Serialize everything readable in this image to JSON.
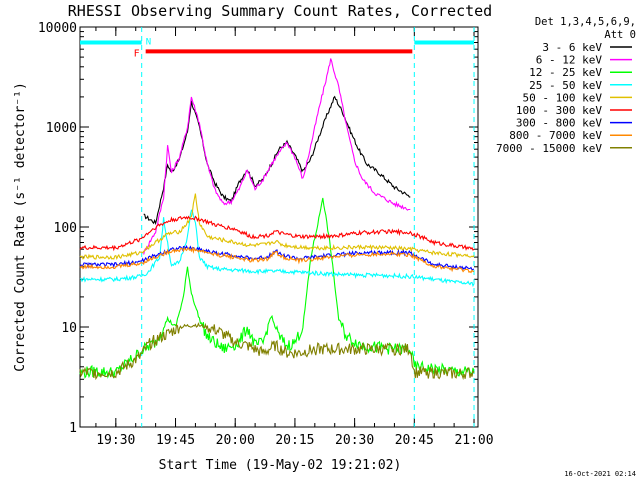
{
  "title": "RHESSI Observing Summary Count Rates, Corrected",
  "timestamp": "16-Oct-2021 02:14",
  "legend_header": [
    "Det 1,3,4,5,6,9,",
    "Att 0"
  ],
  "chart_data": {
    "type": "line",
    "title": "RHESSI Observing Summary Count Rates, Corrected",
    "xlabel": "Start Time (19-May-02 19:21:02)",
    "ylabel": "Corrected Count Rate (s⁻¹ detector⁻¹)",
    "x_ticks": [
      "19:30",
      "19:45",
      "20:00",
      "20:15",
      "20:30",
      "20:45",
      "21:00"
    ],
    "x_tick_minutes": [
      30,
      45,
      60,
      75,
      90,
      105,
      120
    ],
    "xlim_minutes_after_19h": [
      21,
      121
    ],
    "y_scale": "log",
    "ylim": [
      1,
      10000
    ],
    "y_ticks": [
      {
        "v": 1,
        "label": "1"
      },
      {
        "v": 10,
        "label": "10"
      },
      {
        "v": 100,
        "label": "100"
      },
      {
        "v": 1000,
        "label": "1000"
      },
      {
        "v": 10000,
        "label": "10000"
      }
    ],
    "grid": false,
    "legend_placement": "outside-right",
    "flags": [
      {
        "label": "F",
        "start_min": 37.5,
        "end_min": 104.5,
        "level": 5700,
        "color": "#ff0000"
      },
      {
        "label": "N",
        "segments": [
          [
            21,
            36.5
          ],
          [
            105,
            120
          ]
        ],
        "level": 7000,
        "color": "#00ffff"
      }
    ],
    "boundaries_min": [
      36.5,
      105,
      120
    ],
    "series": [
      {
        "name": "3 - 6 keV",
        "color": "#000000",
        "points": [
          [
            37,
            130
          ],
          [
            40,
            110
          ],
          [
            42,
            250
          ],
          [
            43,
            420
          ],
          [
            44,
            350
          ],
          [
            46,
            480
          ],
          [
            48,
            900
          ],
          [
            49,
            1800
          ],
          [
            51,
            1000
          ],
          [
            53,
            420
          ],
          [
            55,
            270
          ],
          [
            57,
            200
          ],
          [
            59,
            180
          ],
          [
            61,
            280
          ],
          [
            63,
            380
          ],
          [
            65,
            260
          ],
          [
            67,
            300
          ],
          [
            69,
            420
          ],
          [
            71,
            600
          ],
          [
            73,
            700
          ],
          [
            75,
            520
          ],
          [
            77,
            360
          ],
          [
            79,
            480
          ],
          [
            81,
            800
          ],
          [
            83,
            1300
          ],
          [
            85,
            2000
          ],
          [
            87,
            1400
          ],
          [
            89,
            900
          ],
          [
            91,
            600
          ],
          [
            93,
            430
          ],
          [
            96,
            350
          ],
          [
            100,
            250
          ],
          [
            104,
            200
          ]
        ]
      },
      {
        "name": "6 - 12 keV",
        "color": "#ff00ff",
        "points": [
          [
            37,
            55
          ],
          [
            38,
            65
          ],
          [
            40,
            90
          ],
          [
            42,
            200
          ],
          [
            43,
            650
          ],
          [
            44,
            350
          ],
          [
            46,
            500
          ],
          [
            48,
            1000
          ],
          [
            49,
            2000
          ],
          [
            51,
            1100
          ],
          [
            53,
            420
          ],
          [
            55,
            230
          ],
          [
            57,
            170
          ],
          [
            59,
            180
          ],
          [
            61,
            240
          ],
          [
            63,
            370
          ],
          [
            65,
            240
          ],
          [
            67,
            300
          ],
          [
            69,
            420
          ],
          [
            71,
            550
          ],
          [
            73,
            700
          ],
          [
            75,
            500
          ],
          [
            77,
            300
          ],
          [
            79,
            650
          ],
          [
            81,
            1500
          ],
          [
            83,
            3200
          ],
          [
            84,
            4800
          ],
          [
            86,
            2500
          ],
          [
            88,
            1000
          ],
          [
            90,
            460
          ],
          [
            92,
            300
          ],
          [
            95,
            220
          ],
          [
            100,
            170
          ],
          [
            104,
            150
          ]
        ]
      },
      {
        "name": "12 - 25 keV",
        "color": "#00ff00",
        "points": [
          [
            21,
            3.5
          ],
          [
            25,
            3.6
          ],
          [
            30,
            3.5
          ],
          [
            37,
            6
          ],
          [
            40,
            7
          ],
          [
            43,
            12
          ],
          [
            45,
            10
          ],
          [
            47,
            20
          ],
          [
            48,
            40
          ],
          [
            49,
            22
          ],
          [
            51,
            12
          ],
          [
            53,
            8
          ],
          [
            57,
            6
          ],
          [
            61,
            7
          ],
          [
            63,
            10
          ],
          [
            65,
            6.5
          ],
          [
            67,
            7
          ],
          [
            69,
            13
          ],
          [
            71,
            8
          ],
          [
            73,
            6.5
          ],
          [
            75,
            7
          ],
          [
            77,
            10
          ],
          [
            79,
            50
          ],
          [
            81,
            120
          ],
          [
            82,
            200
          ],
          [
            84,
            60
          ],
          [
            86,
            12
          ],
          [
            88,
            8
          ],
          [
            92,
            6.5
          ],
          [
            100,
            6
          ],
          [
            104,
            6
          ],
          [
            105,
            4
          ],
          [
            110,
            3.8
          ],
          [
            115,
            3.6
          ],
          [
            120,
            3.5
          ]
        ]
      },
      {
        "name": "25 - 50 keV",
        "color": "#00ffff",
        "points": [
          [
            21,
            30
          ],
          [
            30,
            30
          ],
          [
            36,
            32
          ],
          [
            38,
            35
          ],
          [
            41,
            50
          ],
          [
            42,
            120
          ],
          [
            43,
            70
          ],
          [
            44,
            40
          ],
          [
            46,
            45
          ],
          [
            48,
            80
          ],
          [
            49,
            150
          ],
          [
            50,
            110
          ],
          [
            51,
            50
          ],
          [
            53,
            40
          ],
          [
            56,
            38
          ],
          [
            60,
            37
          ],
          [
            66,
            36
          ],
          [
            72,
            36
          ],
          [
            78,
            35
          ],
          [
            84,
            34
          ],
          [
            90,
            33
          ],
          [
            96,
            33
          ],
          [
            104,
            32
          ],
          [
            110,
            30
          ],
          [
            115,
            28
          ],
          [
            120,
            27
          ]
        ]
      },
      {
        "name": "50 - 100 keV",
        "color": "#e0c000",
        "points": [
          [
            21,
            50
          ],
          [
            30,
            50
          ],
          [
            36,
            55
          ],
          [
            40,
            70
          ],
          [
            43,
            85
          ],
          [
            46,
            90
          ],
          [
            48,
            110
          ],
          [
            49,
            130
          ],
          [
            50,
            210
          ],
          [
            51,
            110
          ],
          [
            53,
            80
          ],
          [
            56,
            75
          ],
          [
            60,
            70
          ],
          [
            64,
            65
          ],
          [
            68,
            67
          ],
          [
            70,
            72
          ],
          [
            72,
            66
          ],
          [
            76,
            63
          ],
          [
            80,
            62
          ],
          [
            86,
            62
          ],
          [
            92,
            63
          ],
          [
            98,
            62
          ],
          [
            104,
            60
          ],
          [
            110,
            55
          ],
          [
            115,
            53
          ],
          [
            120,
            52
          ]
        ]
      },
      {
        "name": "100 - 300 keV",
        "color": "#ff0000",
        "points": [
          [
            21,
            62
          ],
          [
            30,
            62
          ],
          [
            36,
            75
          ],
          [
            40,
            100
          ],
          [
            44,
            118
          ],
          [
            48,
            125
          ],
          [
            51,
            120
          ],
          [
            55,
            105
          ],
          [
            60,
            95
          ],
          [
            64,
            80
          ],
          [
            68,
            82
          ],
          [
            70,
            90
          ],
          [
            72,
            85
          ],
          [
            76,
            80
          ],
          [
            80,
            80
          ],
          [
            86,
            82
          ],
          [
            92,
            88
          ],
          [
            98,
            90
          ],
          [
            104,
            88
          ],
          [
            110,
            70
          ],
          [
            115,
            65
          ],
          [
            120,
            60
          ]
        ]
      },
      {
        "name": "300 - 800 keV",
        "color": "#0000ff",
        "points": [
          [
            21,
            42
          ],
          [
            30,
            42
          ],
          [
            36,
            45
          ],
          [
            40,
            52
          ],
          [
            44,
            60
          ],
          [
            48,
            62
          ],
          [
            51,
            60
          ],
          [
            55,
            55
          ],
          [
            60,
            52
          ],
          [
            64,
            48
          ],
          [
            68,
            50
          ],
          [
            70,
            58
          ],
          [
            72,
            52
          ],
          [
            76,
            48
          ],
          [
            80,
            50
          ],
          [
            86,
            53
          ],
          [
            92,
            55
          ],
          [
            98,
            56
          ],
          [
            104,
            55
          ],
          [
            110,
            42
          ],
          [
            115,
            40
          ],
          [
            120,
            38
          ]
        ]
      },
      {
        "name": "800 - 7000 keV",
        "color": "#ff8800",
        "points": [
          [
            21,
            40
          ],
          [
            30,
            40
          ],
          [
            36,
            43
          ],
          [
            40,
            50
          ],
          [
            44,
            58
          ],
          [
            48,
            60
          ],
          [
            51,
            58
          ],
          [
            55,
            53
          ],
          [
            60,
            50
          ],
          [
            64,
            46
          ],
          [
            68,
            48
          ],
          [
            70,
            56
          ],
          [
            72,
            50
          ],
          [
            76,
            46
          ],
          [
            80,
            48
          ],
          [
            86,
            51
          ],
          [
            92,
            53
          ],
          [
            98,
            54
          ],
          [
            104,
            53
          ],
          [
            110,
            40
          ],
          [
            115,
            38
          ],
          [
            120,
            36
          ]
        ]
      },
      {
        "name": "7000 - 15000 keV",
        "color": "#808000",
        "points": [
          [
            21,
            3.5
          ],
          [
            30,
            3.5
          ],
          [
            36,
            5
          ],
          [
            38,
            6.5
          ],
          [
            40,
            7.5
          ],
          [
            43,
            8.5
          ],
          [
            46,
            10
          ],
          [
            50,
            10.5
          ],
          [
            53,
            10
          ],
          [
            56,
            9
          ],
          [
            60,
            7
          ],
          [
            63,
            6.5
          ],
          [
            67,
            5.5
          ],
          [
            70,
            6.5
          ],
          [
            73,
            5.5
          ],
          [
            76,
            5.5
          ],
          [
            80,
            6
          ],
          [
            86,
            6
          ],
          [
            92,
            6
          ],
          [
            98,
            6
          ],
          [
            104,
            6
          ],
          [
            105,
            3.5
          ],
          [
            110,
            3.5
          ],
          [
            115,
            3.4
          ],
          [
            120,
            3.5
          ]
        ]
      }
    ]
  }
}
